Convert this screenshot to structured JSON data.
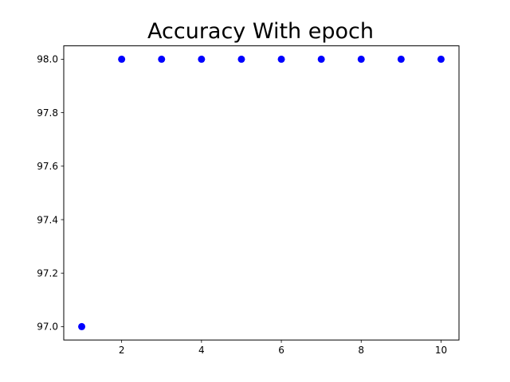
{
  "chart_data": {
    "type": "scatter",
    "title": "Accuracy With epoch",
    "xlabel": "",
    "ylabel": "",
    "x": [
      1,
      2,
      3,
      4,
      5,
      6,
      7,
      8,
      9,
      10
    ],
    "y": [
      97.0,
      98.0,
      98.0,
      98.0,
      98.0,
      98.0,
      98.0,
      98.0,
      98.0,
      98.0
    ],
    "xlim": [
      0.55,
      10.45
    ],
    "ylim": [
      96.95,
      98.05
    ],
    "xticks": [
      2,
      4,
      6,
      8,
      10
    ],
    "xtick_labels": [
      "2",
      "4",
      "6",
      "8",
      "10"
    ],
    "yticks": [
      97.0,
      97.2,
      97.4,
      97.6,
      97.8,
      98.0
    ],
    "ytick_labels": [
      "97.0",
      "97.2",
      "97.4",
      "97.6",
      "97.8",
      "98.0"
    ],
    "grid": false,
    "marker_color": "#0000ff"
  }
}
